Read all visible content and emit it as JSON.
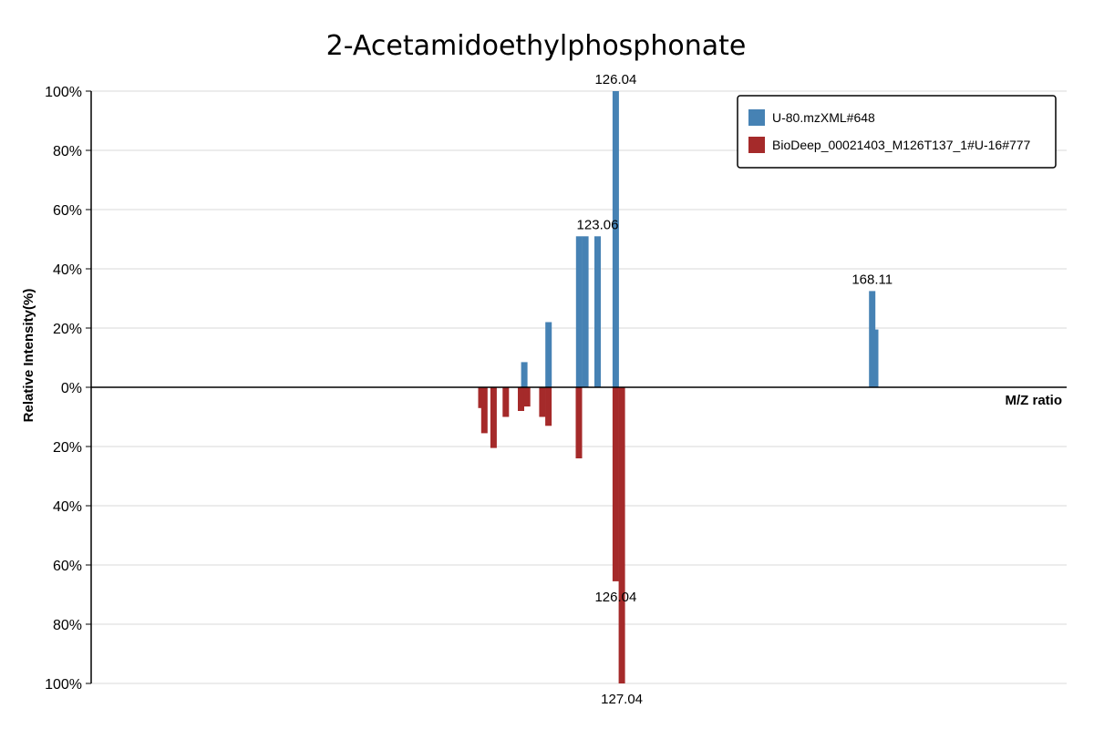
{
  "chart_data": {
    "type": "bar",
    "title": "2-Acetamidoethylphosphonate",
    "xlabel": "M/Z ratio",
    "ylabel": "Relative Intensity(%)",
    "x_range": [
      40,
      200
    ],
    "y_range_top": [
      0,
      100
    ],
    "y_range_bottom": [
      0,
      100
    ],
    "y_ticks_top": [
      "0%",
      "20%",
      "40%",
      "60%",
      "80%",
      "100%"
    ],
    "y_ticks_bottom": [
      "20%",
      "40%",
      "60%",
      "80%",
      "100%"
    ],
    "grid": true,
    "legend_position": "top-right",
    "series": [
      {
        "name": "U-80.mzXML#648",
        "color": "#4682b4",
        "direction": "up",
        "peaks": [
          {
            "mz": 111.05,
            "intensity": 8.5
          },
          {
            "mz": 115.02,
            "intensity": 22.0
          },
          {
            "mz": 120.05,
            "intensity": 51.0
          },
          {
            "mz": 121.06,
            "intensity": 51.0
          },
          {
            "mz": 123.06,
            "intensity": 51.0,
            "label": "123.06"
          },
          {
            "mz": 126.04,
            "intensity": 100.0,
            "label": "126.04"
          },
          {
            "mz": 168.11,
            "intensity": 32.5,
            "label": "168.11"
          },
          {
            "mz": 168.6,
            "intensity": 19.5
          }
        ]
      },
      {
        "name": "BioDeep_00021403_M126T137_1#U-16#777",
        "color": "#a52a2a",
        "direction": "down",
        "peaks": [
          {
            "mz": 104.0,
            "intensity": 7.0
          },
          {
            "mz": 104.5,
            "intensity": 15.5
          },
          {
            "mz": 106.0,
            "intensity": 20.5
          },
          {
            "mz": 108.0,
            "intensity": 10.0
          },
          {
            "mz": 110.5,
            "intensity": 8.0
          },
          {
            "mz": 111.5,
            "intensity": 6.5
          },
          {
            "mz": 114.0,
            "intensity": 10.0
          },
          {
            "mz": 115.0,
            "intensity": 13.0
          },
          {
            "mz": 120.0,
            "intensity": 24.0
          },
          {
            "mz": 126.04,
            "intensity": 65.5,
            "label": "126.04"
          },
          {
            "mz": 127.04,
            "intensity": 100.0,
            "label": "127.04"
          }
        ]
      }
    ]
  }
}
